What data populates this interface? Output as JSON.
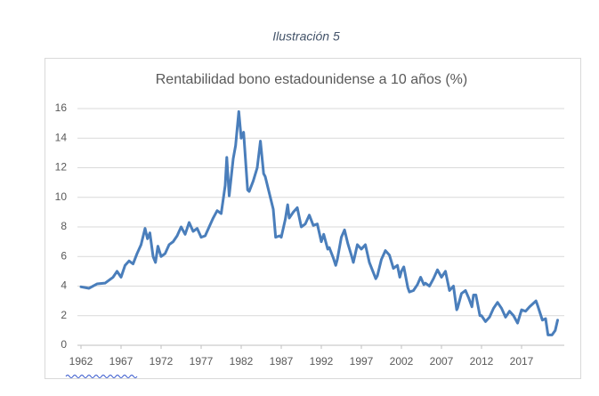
{
  "caption": "Ilustración 5",
  "chart_data": {
    "type": "line",
    "title": "Rentabilidad bono estadounidense a 10 años (%)",
    "x": [
      1962,
      1962.5,
      1963,
      1964,
      1965,
      1966,
      1966.5,
      1967,
      1967.5,
      1968,
      1968.5,
      1969,
      1969.5,
      1970,
      1970.3,
      1970.6,
      1971,
      1971.3,
      1971.6,
      1972,
      1972.5,
      1973,
      1973.5,
      1974,
      1974.5,
      1975,
      1975.5,
      1976,
      1976.5,
      1977,
      1977.5,
      1978,
      1978.5,
      1979,
      1979.5,
      1980,
      1980.2,
      1980.5,
      1981,
      1981.3,
      1981.7,
      1982,
      1982.3,
      1982.8,
      1983,
      1983.5,
      1984,
      1984.4,
      1984.8,
      1985,
      1985.5,
      1986,
      1986.3,
      1986.8,
      1987,
      1987.5,
      1987.8,
      1988,
      1988.5,
      1989,
      1989.5,
      1990,
      1990.5,
      1991,
      1991.5,
      1992,
      1992.3,
      1992.8,
      1993,
      1993.5,
      1993.8,
      1994,
      1994.5,
      1994.9,
      1995.3,
      1995.8,
      1996,
      1996.5,
      1997,
      1997.5,
      1998,
      1998.8,
      1999,
      1999.5,
      2000,
      2000.5,
      2001,
      2001.5,
      2001.8,
      2002,
      2002.3,
      2002.8,
      2003,
      2003.5,
      2004,
      2004.4,
      2004.8,
      2005,
      2005.5,
      2006,
      2006.5,
      2007,
      2007.5,
      2008,
      2008.5,
      2008.9,
      2009,
      2009.5,
      2010,
      2010.4,
      2010.8,
      2011,
      2011.3,
      2011.8,
      2012,
      2012.5,
      2013,
      2013.5,
      2014,
      2014.5,
      2015,
      2015.5,
      2016,
      2016.5,
      2017,
      2017.5,
      2018,
      2018.8,
      2019,
      2019.6,
      2020,
      2020.3,
      2020.8,
      2021.2,
      2021.5
    ],
    "series": [
      {
        "name": "Rentabilidad",
        "color": "#4a7ebb",
        "values": [
          3.95,
          3.9,
          3.85,
          4.15,
          4.2,
          4.6,
          5.0,
          4.6,
          5.4,
          5.7,
          5.5,
          6.2,
          6.8,
          7.9,
          7.2,
          7.6,
          6.0,
          5.6,
          6.7,
          6.0,
          6.2,
          6.8,
          7.0,
          7.4,
          8.0,
          7.5,
          8.3,
          7.7,
          7.9,
          7.3,
          7.4,
          8.0,
          8.6,
          9.1,
          8.9,
          10.8,
          12.7,
          10.1,
          12.6,
          13.5,
          15.8,
          14.0,
          14.4,
          10.5,
          10.4,
          11.1,
          12.0,
          13.8,
          11.6,
          11.4,
          10.3,
          9.2,
          7.3,
          7.4,
          7.3,
          8.5,
          9.5,
          8.6,
          9.0,
          9.3,
          8.0,
          8.2,
          8.8,
          8.1,
          8.2,
          7.0,
          7.5,
          6.5,
          6.6,
          5.9,
          5.4,
          5.8,
          7.3,
          7.8,
          6.9,
          6.0,
          5.6,
          6.8,
          6.5,
          6.8,
          5.6,
          4.5,
          4.7,
          5.8,
          6.4,
          6.1,
          5.2,
          5.4,
          4.6,
          5.0,
          5.3,
          3.9,
          3.6,
          3.7,
          4.1,
          4.6,
          4.1,
          4.2,
          4.0,
          4.5,
          5.1,
          4.6,
          5.0,
          3.7,
          4.0,
          2.4,
          2.5,
          3.5,
          3.7,
          3.2,
          2.6,
          3.4,
          3.4,
          2.0,
          2.0,
          1.6,
          1.9,
          2.5,
          2.9,
          2.5,
          1.9,
          2.3,
          2.0,
          1.5,
          2.4,
          2.3,
          2.6,
          3.0,
          2.7,
          1.7,
          1.8,
          0.7,
          0.7,
          1.0,
          1.7
        ]
      }
    ],
    "xlim": [
      1962,
      2022
    ],
    "xticks": [
      1962,
      1967,
      1972,
      1977,
      1982,
      1987,
      1992,
      1997,
      2002,
      2007,
      2012,
      2017
    ],
    "ylim": [
      0,
      16
    ],
    "yticks": [
      0,
      2,
      4,
      6,
      8,
      10,
      12,
      14,
      16
    ],
    "grid": true
  }
}
